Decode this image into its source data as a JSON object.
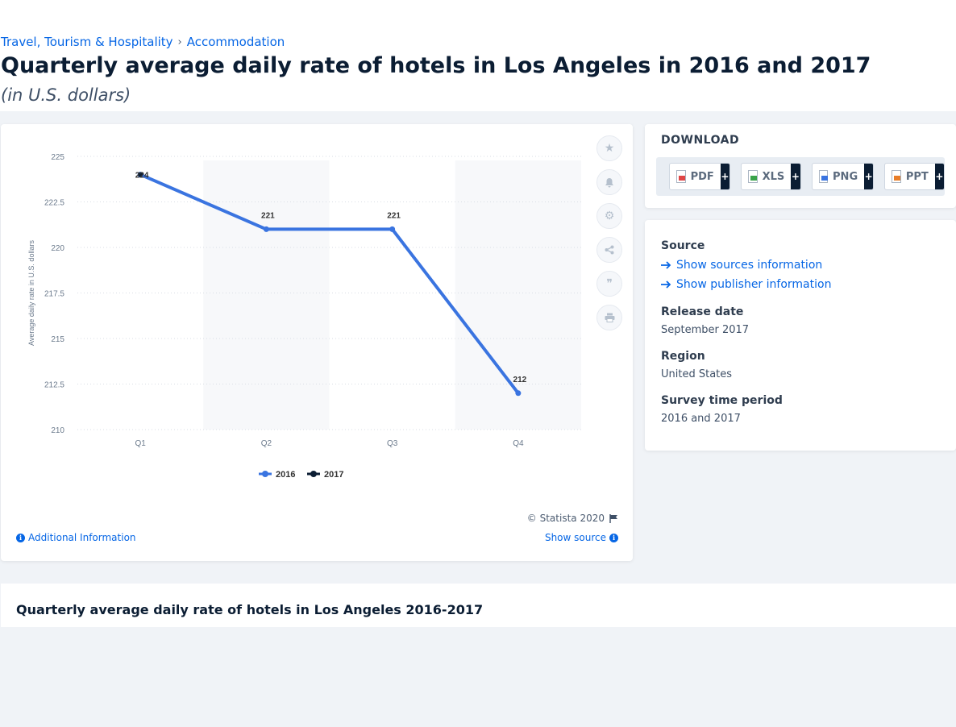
{
  "breadcrumb": {
    "item1": "Travel, Tourism & Hospitality",
    "separator": "›",
    "item2": "Accommodation"
  },
  "title": "Quarterly average daily rate of hotels in Los Angeles in 2016 and 2017",
  "subtitle": "(in U.S. dollars)",
  "chart_data": {
    "type": "line",
    "categories": [
      "Q1",
      "Q2",
      "Q3",
      "Q4"
    ],
    "series": [
      {
        "name": "2016",
        "values": [
          224,
          221,
          221,
          212
        ],
        "color": "#3a74e0"
      },
      {
        "name": "2017",
        "values": [
          224,
          null,
          null,
          null
        ],
        "color": "#0b1d33"
      }
    ],
    "data_labels": [
      "224",
      "221",
      "221",
      "212"
    ],
    "ylabel": "Average daily rate in U.S. dollars",
    "ylim": [
      210,
      225
    ],
    "yticks": [
      "225",
      "222.5",
      "220",
      "217.5",
      "215",
      "212.5",
      "210"
    ],
    "ytick_values": [
      225,
      222.5,
      220,
      217.5,
      215,
      212.5,
      210
    ],
    "legend_position": "bottom",
    "grid": true
  },
  "chart_tools": [
    "star-icon",
    "bell-icon",
    "gear-icon",
    "share-icon",
    "quote-icon",
    "print-icon"
  ],
  "copyright": "© Statista 2020",
  "additional_info": "Additional Information",
  "show_source": "Show source",
  "download": {
    "title": "DOWNLOAD",
    "buttons": [
      {
        "label": "PDF",
        "plus": "+",
        "color": "#e04646"
      },
      {
        "label": "XLS",
        "plus": "+",
        "color": "#3aa34a"
      },
      {
        "label": "PNG",
        "plus": "+",
        "color": "#3a74e0"
      },
      {
        "label": "PPT",
        "plus": "+",
        "color": "#e87e2a"
      }
    ]
  },
  "source_panel": {
    "source_label": "Source",
    "show_sources": "Show sources information",
    "show_publisher": "Show publisher information",
    "release_date_label": "Release date",
    "release_date": "September 2017",
    "region_label": "Region",
    "region": "United States",
    "survey_label": "Survey time period",
    "survey_period": "2016 and 2017"
  },
  "table_title": "Quarterly average daily rate of hotels in Los Angeles 2016-2017"
}
